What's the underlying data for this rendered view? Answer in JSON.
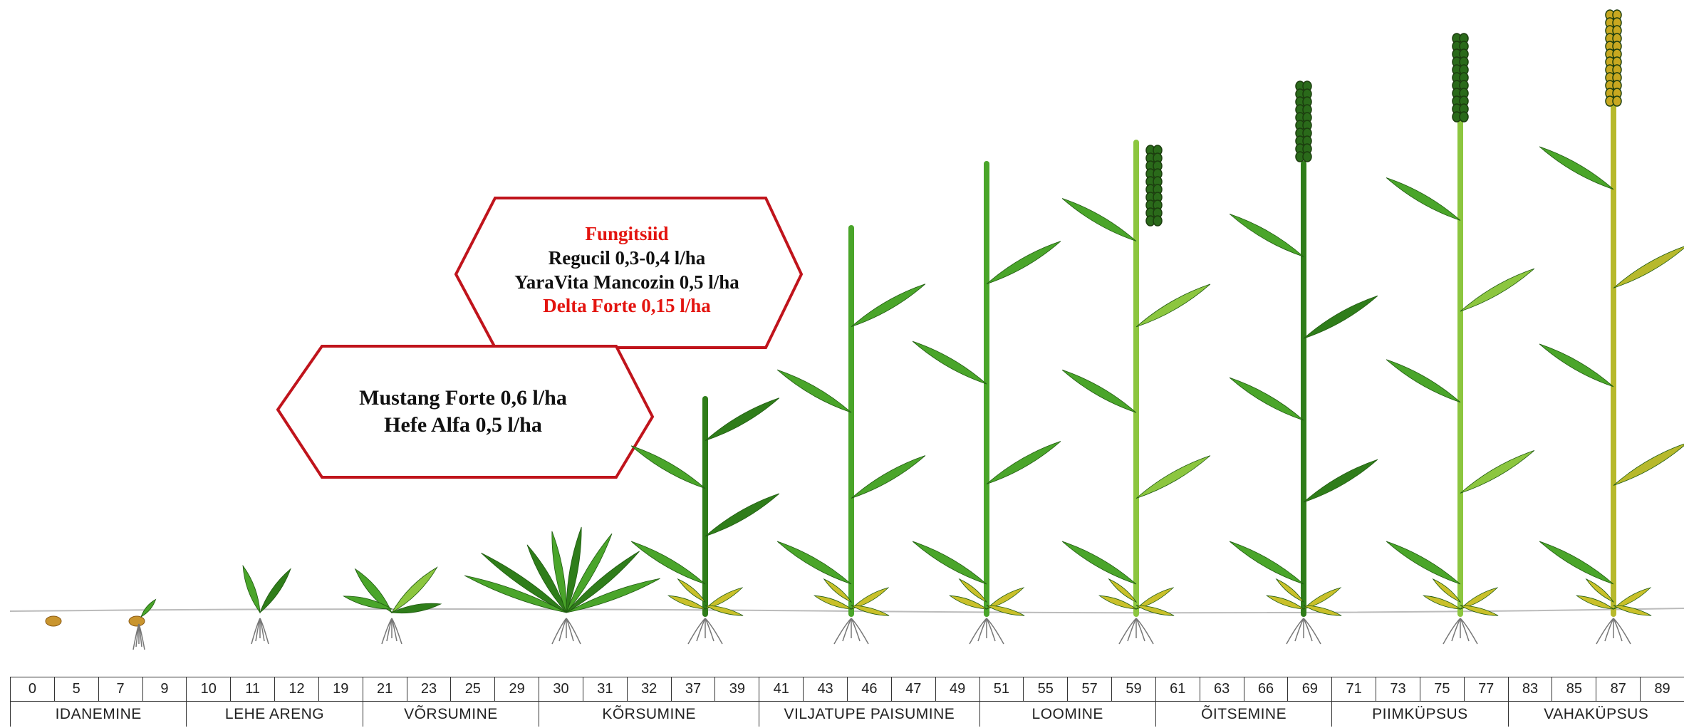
{
  "callout_fungicides": {
    "title": "Fungitsiid",
    "line1": "Regucil 0,3-0,4 l/ha",
    "line2": "YaraVita Mancozin 0,5 l/ha",
    "line3": "Delta Forte 0,15 l/ha"
  },
  "callout_herbicides": {
    "line1": "Mustang Forte 0,6 l/ha",
    "line2": "Hefe Alfa 0,5 l/ha"
  },
  "bbch_codes": [
    "0",
    "5",
    "7",
    "9",
    "10",
    "11",
    "12",
    "19",
    "21",
    "23",
    "25",
    "29",
    "30",
    "31",
    "32",
    "37",
    "39",
    "41",
    "43",
    "46",
    "47",
    "49",
    "51",
    "55",
    "57",
    "59",
    "61",
    "63",
    "66",
    "69",
    "71",
    "73",
    "75",
    "77",
    "83",
    "85",
    "87",
    "89"
  ],
  "growth_stages": [
    {
      "label": "IDANEMINE",
      "codes": 4
    },
    {
      "label": "LEHE ARENG",
      "codes": 4
    },
    {
      "label": "VÕRSUMINE",
      "codes": 4
    },
    {
      "label": "KÕRSUMINE",
      "codes": 5
    },
    {
      "label": "VILJATUPE PAISUMINE",
      "codes": 5
    },
    {
      "label": "LOOMINE",
      "codes": 4
    },
    {
      "label": "ÕITSEMINE",
      "codes": 4
    },
    {
      "label": "PIIMKÜPSUS",
      "codes": 4
    },
    {
      "label": "VAHAKÜPSUS",
      "codes": 4
    }
  ],
  "colors": {
    "callout_border": "#c0141c",
    "highlight_text": "#e3140f",
    "leaf_dark": "#2f7d1a",
    "leaf_mid": "#4aa52a",
    "leaf_light": "#8cc63f",
    "straw": "#c9c02a",
    "grain_green": "#2a6a1a",
    "grain_ripe": "#c8a820",
    "root": "#777777"
  }
}
